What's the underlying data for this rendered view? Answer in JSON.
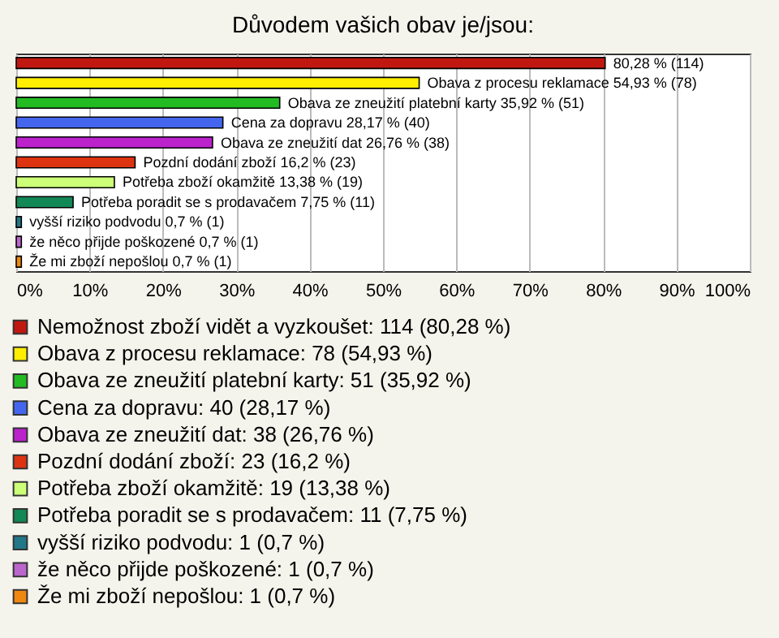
{
  "chart_data": {
    "type": "bar",
    "orientation": "horizontal",
    "title": "Důvodem vašich obav je/jsou:",
    "categories": [
      null,
      null,
      null,
      null,
      null,
      null,
      null,
      null,
      null,
      null,
      null
    ],
    "series": [
      {
        "name": "Nemožnost zboží vidět a vyzkoušet: 114 (80,28 %)",
        "color": "#c01810",
        "values": [
          80.28,
          null,
          null,
          null,
          null,
          null,
          null,
          null,
          null,
          null,
          null
        ],
        "value_labels": [
          "80,28 % (114)",
          null,
          null,
          null,
          null,
          null,
          null,
          null,
          null,
          null,
          null
        ]
      },
      {
        "name": "Obava z procesu reklamace: 78 (54,93 %)",
        "color": "#ffee00",
        "values": [
          null,
          54.93,
          null,
          null,
          null,
          null,
          null,
          null,
          null,
          null,
          null
        ],
        "value_labels": [
          null,
          "Obava z procesu reklamace 54,93 % (78)",
          null,
          null,
          null,
          null,
          null,
          null,
          null,
          null,
          null
        ]
      },
      {
        "name": "Obava ze zneužití platební karty: 51 (35,92 %)",
        "color": "#22bb22",
        "values": [
          null,
          null,
          35.92,
          null,
          null,
          null,
          null,
          null,
          null,
          null,
          null
        ],
        "value_labels": [
          null,
          null,
          "Obava ze zneužití platební karty 35,92 % (51)",
          null,
          null,
          null,
          null,
          null,
          null,
          null,
          null
        ]
      },
      {
        "name": "Cena za dopravu: 40 (28,17 %)",
        "color": "#4466ee",
        "values": [
          null,
          null,
          null,
          28.17,
          null,
          null,
          null,
          null,
          null,
          null,
          null
        ],
        "value_labels": [
          null,
          null,
          null,
          "Cena za dopravu 28,17 % (40)",
          null,
          null,
          null,
          null,
          null,
          null,
          null
        ]
      },
      {
        "name": "Obava ze zneužití dat: 38 (26,76 %)",
        "color": "#bb22cc",
        "values": [
          null,
          null,
          null,
          null,
          26.76,
          null,
          null,
          null,
          null,
          null,
          null
        ],
        "value_labels": [
          null,
          null,
          null,
          null,
          "Obava ze zneužití dat 26,76 % (38)",
          null,
          null,
          null,
          null,
          null,
          null
        ]
      },
      {
        "name": "Pozdní dodání zboží: 23 (16,2 %)",
        "color": "#dd3311",
        "values": [
          null,
          null,
          null,
          null,
          null,
          16.2,
          null,
          null,
          null,
          null,
          null
        ],
        "value_labels": [
          null,
          null,
          null,
          null,
          null,
          "Pozdní dodání zboží 16,2 % (23)",
          null,
          null,
          null,
          null,
          null
        ]
      },
      {
        "name": "Potřeba zboží okamžitě: 19 (13,38 %)",
        "color": "#ccff77",
        "values": [
          null,
          null,
          null,
          null,
          null,
          null,
          13.38,
          null,
          null,
          null,
          null
        ],
        "value_labels": [
          null,
          null,
          null,
          null,
          null,
          null,
          "Potřeba zboží okamžitě 13,38 % (19)",
          null,
          null,
          null,
          null
        ]
      },
      {
        "name": "Potřeba poradit se s prodavačem: 11 (7,75 %)",
        "color": "#118855",
        "values": [
          null,
          null,
          null,
          null,
          null,
          null,
          null,
          7.75,
          null,
          null,
          null
        ],
        "value_labels": [
          null,
          null,
          null,
          null,
          null,
          null,
          null,
          "Potřeba poradit se s prodavačem 7,75 % (11)",
          null,
          null,
          null
        ]
      },
      {
        "name": "vyšší riziko podvodu: 1 (0,7 %)",
        "color": "#227788",
        "values": [
          null,
          null,
          null,
          null,
          null,
          null,
          null,
          null,
          0.7,
          null,
          null
        ],
        "value_labels": [
          null,
          null,
          null,
          null,
          null,
          null,
          null,
          null,
          "vyšší riziko podvodu 0,7 % (1)",
          null,
          null
        ]
      },
      {
        "name": "že něco přijde poškozené: 1 (0,7 %)",
        "color": "#bb66cc",
        "values": [
          null,
          null,
          null,
          null,
          null,
          null,
          null,
          null,
          null,
          0.7,
          null
        ],
        "value_labels": [
          null,
          null,
          null,
          null,
          null,
          null,
          null,
          null,
          null,
          "že něco přijde poškozené 0,7 % (1)",
          null
        ]
      },
      {
        "name": "Že mi zboží nepošlou: 1 (0,7 %)",
        "color": "#ee8811",
        "values": [
          null,
          null,
          null,
          null,
          null,
          null,
          null,
          null,
          null,
          null,
          0.7
        ],
        "value_labels": [
          null,
          null,
          null,
          null,
          null,
          null,
          null,
          null,
          null,
          null,
          "Že mi zboží nepošlou 0,7 % (1)"
        ]
      }
    ],
    "xlim": [
      0,
      100
    ],
    "xticks": [
      {
        "value": 0,
        "label": "0%"
      },
      {
        "value": 10,
        "label": "10%"
      },
      {
        "value": 20,
        "label": "20%"
      },
      {
        "value": 30,
        "label": "30%"
      },
      {
        "value": 40,
        "label": "40%"
      },
      {
        "value": 50,
        "label": "50%"
      },
      {
        "value": 60,
        "label": "60%"
      },
      {
        "value": 70,
        "label": "70%"
      },
      {
        "value": 80,
        "label": "80%"
      },
      {
        "value": 90,
        "label": "90%"
      },
      {
        "value": 100,
        "label": "100%"
      }
    ],
    "grid": "x",
    "legend": "bottom",
    "tick_labels": "x"
  }
}
